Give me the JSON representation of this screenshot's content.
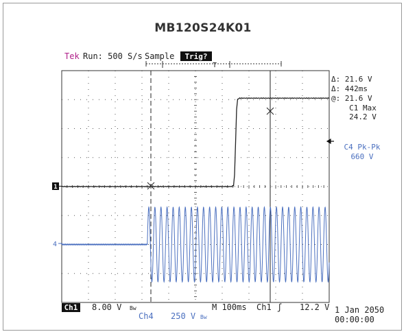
{
  "header": {
    "title": "MB120S24K01",
    "tek": "Tek",
    "run_status": "Run: 500 S/s",
    "acq_mode": "Sample",
    "trig_status": "Trig?"
  },
  "colors": {
    "ch1": "#222222",
    "ch4": "#4a6fbf",
    "tek": "#b0208a",
    "grid": "#555555"
  },
  "chart_data": {
    "type": "line",
    "title": "MB120S24K01",
    "grid": true,
    "divisions": {
      "x": 10,
      "y": 8
    },
    "x_scale": {
      "per_div": "100ms"
    },
    "series": [
      {
        "name": "Ch1",
        "volts_per_div": 8.0,
        "marker": "1",
        "points_div": [
          [
            0,
            0.0
          ],
          [
            6.35,
            0.0
          ],
          [
            6.45,
            0.05
          ],
          [
            6.55,
            3.0
          ],
          [
            6.65,
            3.05
          ],
          [
            10,
            3.05
          ]
        ]
      },
      {
        "name": "Ch4",
        "volts_per_div": 250,
        "marker": "4",
        "baseline_div": -2.0,
        "burst_start_div": 3.2,
        "burst_end_div": 10,
        "cycles_per_div": 4.4,
        "amplitude_div": 1.29
      }
    ]
  },
  "measurements": {
    "delta_v": "Δ: 21.6 V",
    "delta_t": "Δ: 442ms",
    "at": "@: 21.6 V",
    "c1_max_label": "C1 Max",
    "c1_max_value": "24.2 V",
    "c4_pkpk_label": "C4 Pk-Pk",
    "c4_pkpk_value": "660 V"
  },
  "status_bar": {
    "ch1_label": "Ch1",
    "ch1_scale": "8.00 V",
    "bw_symbol_1": "Βw",
    "timebase": "M 100ms",
    "trig_source": "Ch1",
    "trig_slope": "ʃ",
    "trig_level": "12.2 V",
    "date": "1 Jan 2050",
    "time": "00:00:00",
    "ch4_label": "Ch4",
    "ch4_scale": "250 V",
    "bw_symbol_4": "Βw"
  },
  "markers": {
    "ch1": "1",
    "ch4": "4"
  }
}
